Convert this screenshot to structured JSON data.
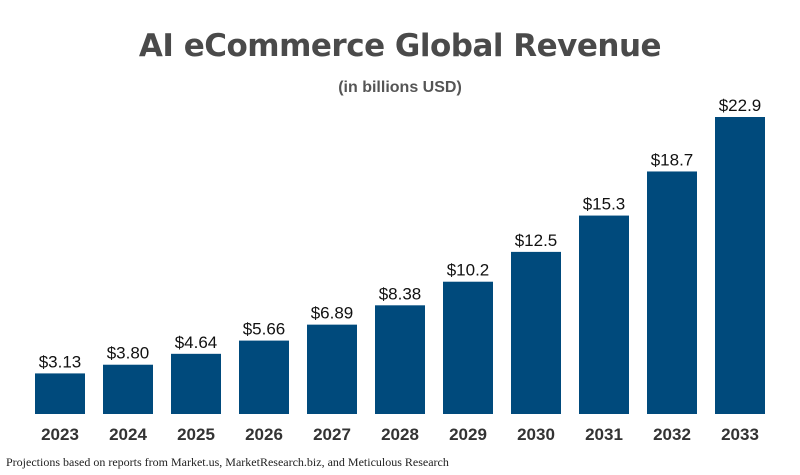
{
  "chart_data": {
    "type": "bar",
    "title": "AI eCommerce Global Revenue",
    "subtitle": "(in billions USD)",
    "categories": [
      "2023",
      "2024",
      "2025",
      "2026",
      "2027",
      "2028",
      "2029",
      "2030",
      "2031",
      "2032",
      "2033"
    ],
    "values": [
      3.13,
      3.8,
      4.64,
      5.66,
      6.89,
      8.38,
      10.2,
      12.5,
      15.3,
      18.7,
      22.9
    ],
    "data_labels": [
      "$3.13",
      "$3.80",
      "$4.64",
      "$5.66",
      "$6.89",
      "$8.38",
      "$10.2",
      "$12.5",
      "$15.3",
      "$18.7",
      "$22.9"
    ],
    "xlabel": "",
    "ylabel": "",
    "ylim": [
      0,
      22.9
    ],
    "grid": false,
    "bar_color": "#004a7c"
  },
  "footnote": "Projections based on reports from Market.us, MarketResearch.biz, and Meticulous Research"
}
